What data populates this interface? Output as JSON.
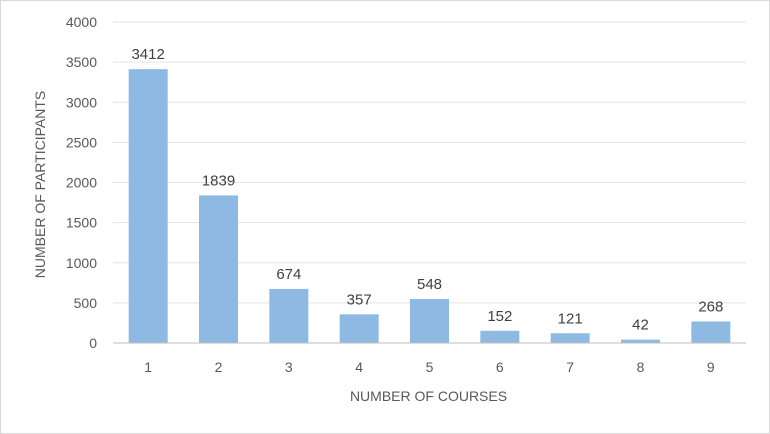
{
  "chart_data": {
    "type": "bar",
    "title": "",
    "xlabel": "NUMBER OF COURSES",
    "ylabel": "NUMBER OF PARTICIPANTS",
    "categories": [
      "1",
      "2",
      "3",
      "4",
      "5",
      "6",
      "7",
      "8",
      "9"
    ],
    "values": [
      3412,
      1839,
      674,
      357,
      548,
      152,
      121,
      42,
      268
    ],
    "ylim": [
      0,
      4000
    ],
    "yticks": [
      0,
      500,
      1000,
      1500,
      2000,
      2500,
      3000,
      3500,
      4000
    ],
    "grid": true,
    "bar_color": "#8db9e2",
    "grid_color": "#e3e3e3",
    "axis_color": "#bfbfbf",
    "data_labels": true
  }
}
